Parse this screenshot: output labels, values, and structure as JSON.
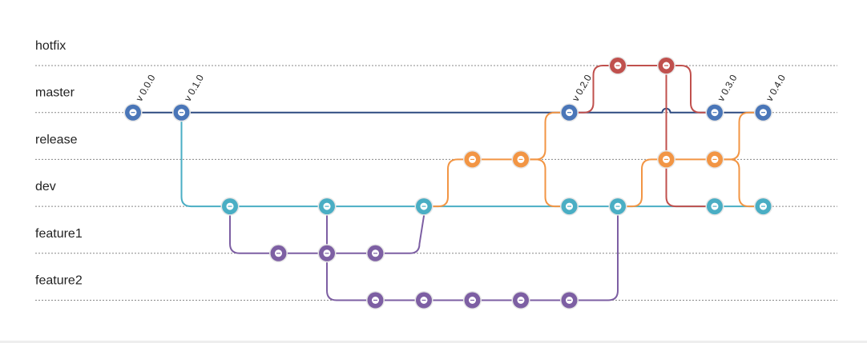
{
  "colors": {
    "master": "#4a76b8",
    "master_line": "#2d4a80",
    "hotfix": "#c0504d",
    "release": "#f29544",
    "dev": "#4aaec4",
    "feature": "#7d5fa3",
    "lane": "#888888"
  },
  "lanes": [
    {
      "id": "hotfix",
      "label": "hotfix"
    },
    {
      "id": "master",
      "label": "master"
    },
    {
      "id": "release",
      "label": "release"
    },
    {
      "id": "dev",
      "label": "dev"
    },
    {
      "id": "feature1",
      "label": "feature1"
    },
    {
      "id": "feature2",
      "label": "feature2"
    }
  ],
  "tags": [
    {
      "commit": "m1",
      "label": "v 0.0.0"
    },
    {
      "commit": "m2",
      "label": "v 0.1.0"
    },
    {
      "commit": "m3",
      "label": "v 0.2.0"
    },
    {
      "commit": "m4",
      "label": "v 0.3.0"
    },
    {
      "commit": "m5",
      "label": "v 0.4.0"
    }
  ],
  "commits": [
    {
      "id": "m1",
      "lane": "master",
      "step": 0,
      "color": "master"
    },
    {
      "id": "m2",
      "lane": "master",
      "step": 1,
      "color": "master"
    },
    {
      "id": "m3",
      "lane": "master",
      "step": 9,
      "color": "master"
    },
    {
      "id": "m4",
      "lane": "master",
      "step": 12,
      "color": "master"
    },
    {
      "id": "m5",
      "lane": "master",
      "step": 13,
      "color": "master"
    },
    {
      "id": "h1",
      "lane": "hotfix",
      "step": 10,
      "color": "hotfix"
    },
    {
      "id": "h2",
      "lane": "hotfix",
      "step": 11,
      "color": "hotfix"
    },
    {
      "id": "r1",
      "lane": "release",
      "step": 7,
      "color": "release"
    },
    {
      "id": "r2",
      "lane": "release",
      "step": 8,
      "color": "release"
    },
    {
      "id": "r3",
      "lane": "release",
      "step": 11,
      "color": "release"
    },
    {
      "id": "r4",
      "lane": "release",
      "step": 12,
      "color": "release"
    },
    {
      "id": "d1",
      "lane": "dev",
      "step": 2,
      "color": "dev"
    },
    {
      "id": "d2",
      "lane": "dev",
      "step": 4,
      "color": "dev"
    },
    {
      "id": "d3",
      "lane": "dev",
      "step": 6,
      "color": "dev"
    },
    {
      "id": "d4",
      "lane": "dev",
      "step": 9,
      "color": "dev"
    },
    {
      "id": "d5",
      "lane": "dev",
      "step": 10,
      "color": "dev"
    },
    {
      "id": "d6",
      "lane": "dev",
      "step": 12,
      "color": "dev"
    },
    {
      "id": "d7",
      "lane": "dev",
      "step": 13,
      "color": "dev"
    },
    {
      "id": "f1",
      "lane": "feature1",
      "step": 3,
      "color": "feature"
    },
    {
      "id": "f2",
      "lane": "feature1",
      "step": 4,
      "color": "feature"
    },
    {
      "id": "f3",
      "lane": "feature1",
      "step": 5,
      "color": "feature"
    },
    {
      "id": "g1",
      "lane": "feature2",
      "step": 5,
      "color": "feature"
    },
    {
      "id": "g2",
      "lane": "feature2",
      "step": 6,
      "color": "feature"
    },
    {
      "id": "g3",
      "lane": "feature2",
      "step": 7,
      "color": "feature"
    },
    {
      "id": "g4",
      "lane": "feature2",
      "step": 8,
      "color": "feature"
    },
    {
      "id": "g5",
      "lane": "feature2",
      "step": 9,
      "color": "feature"
    }
  ],
  "edges": [
    {
      "from": "m1",
      "to": "m5",
      "color": "master_line",
      "bridge_at_step": 11
    },
    {
      "from": "m2",
      "to": "d1",
      "color": "dev"
    },
    {
      "from": "d1",
      "to": "d7",
      "color": "dev"
    },
    {
      "from": "d1",
      "to": "f1",
      "color": "feature"
    },
    {
      "from": "f1",
      "to": "f3",
      "color": "feature"
    },
    {
      "from": "f3",
      "to": "d3",
      "color": "feature"
    },
    {
      "from": "d2",
      "to": "g1",
      "color": "feature",
      "bridge_lane": "feature1"
    },
    {
      "from": "g1",
      "to": "g5",
      "color": "feature"
    },
    {
      "from": "g5",
      "to": "d5",
      "color": "feature"
    },
    {
      "from": "d3",
      "to": "r1",
      "color": "release"
    },
    {
      "from": "r1",
      "to": "r2",
      "color": "release"
    },
    {
      "from": "r2",
      "to": "m3",
      "color": "release"
    },
    {
      "from": "r2",
      "to": "d4",
      "color": "release"
    },
    {
      "from": "m3",
      "to": "h1",
      "color": "hotfix"
    },
    {
      "from": "h1",
      "to": "h2",
      "color": "hotfix"
    },
    {
      "from": "h2",
      "to": "m4",
      "color": "hotfix"
    },
    {
      "from": "h2",
      "to": "d6",
      "color": "hotfix"
    },
    {
      "from": "d5",
      "to": "r3",
      "color": "release"
    },
    {
      "from": "r3",
      "to": "r4",
      "color": "release"
    },
    {
      "from": "r4",
      "to": "m5",
      "color": "release"
    },
    {
      "from": "r4",
      "to": "d7",
      "color": "release"
    }
  ]
}
